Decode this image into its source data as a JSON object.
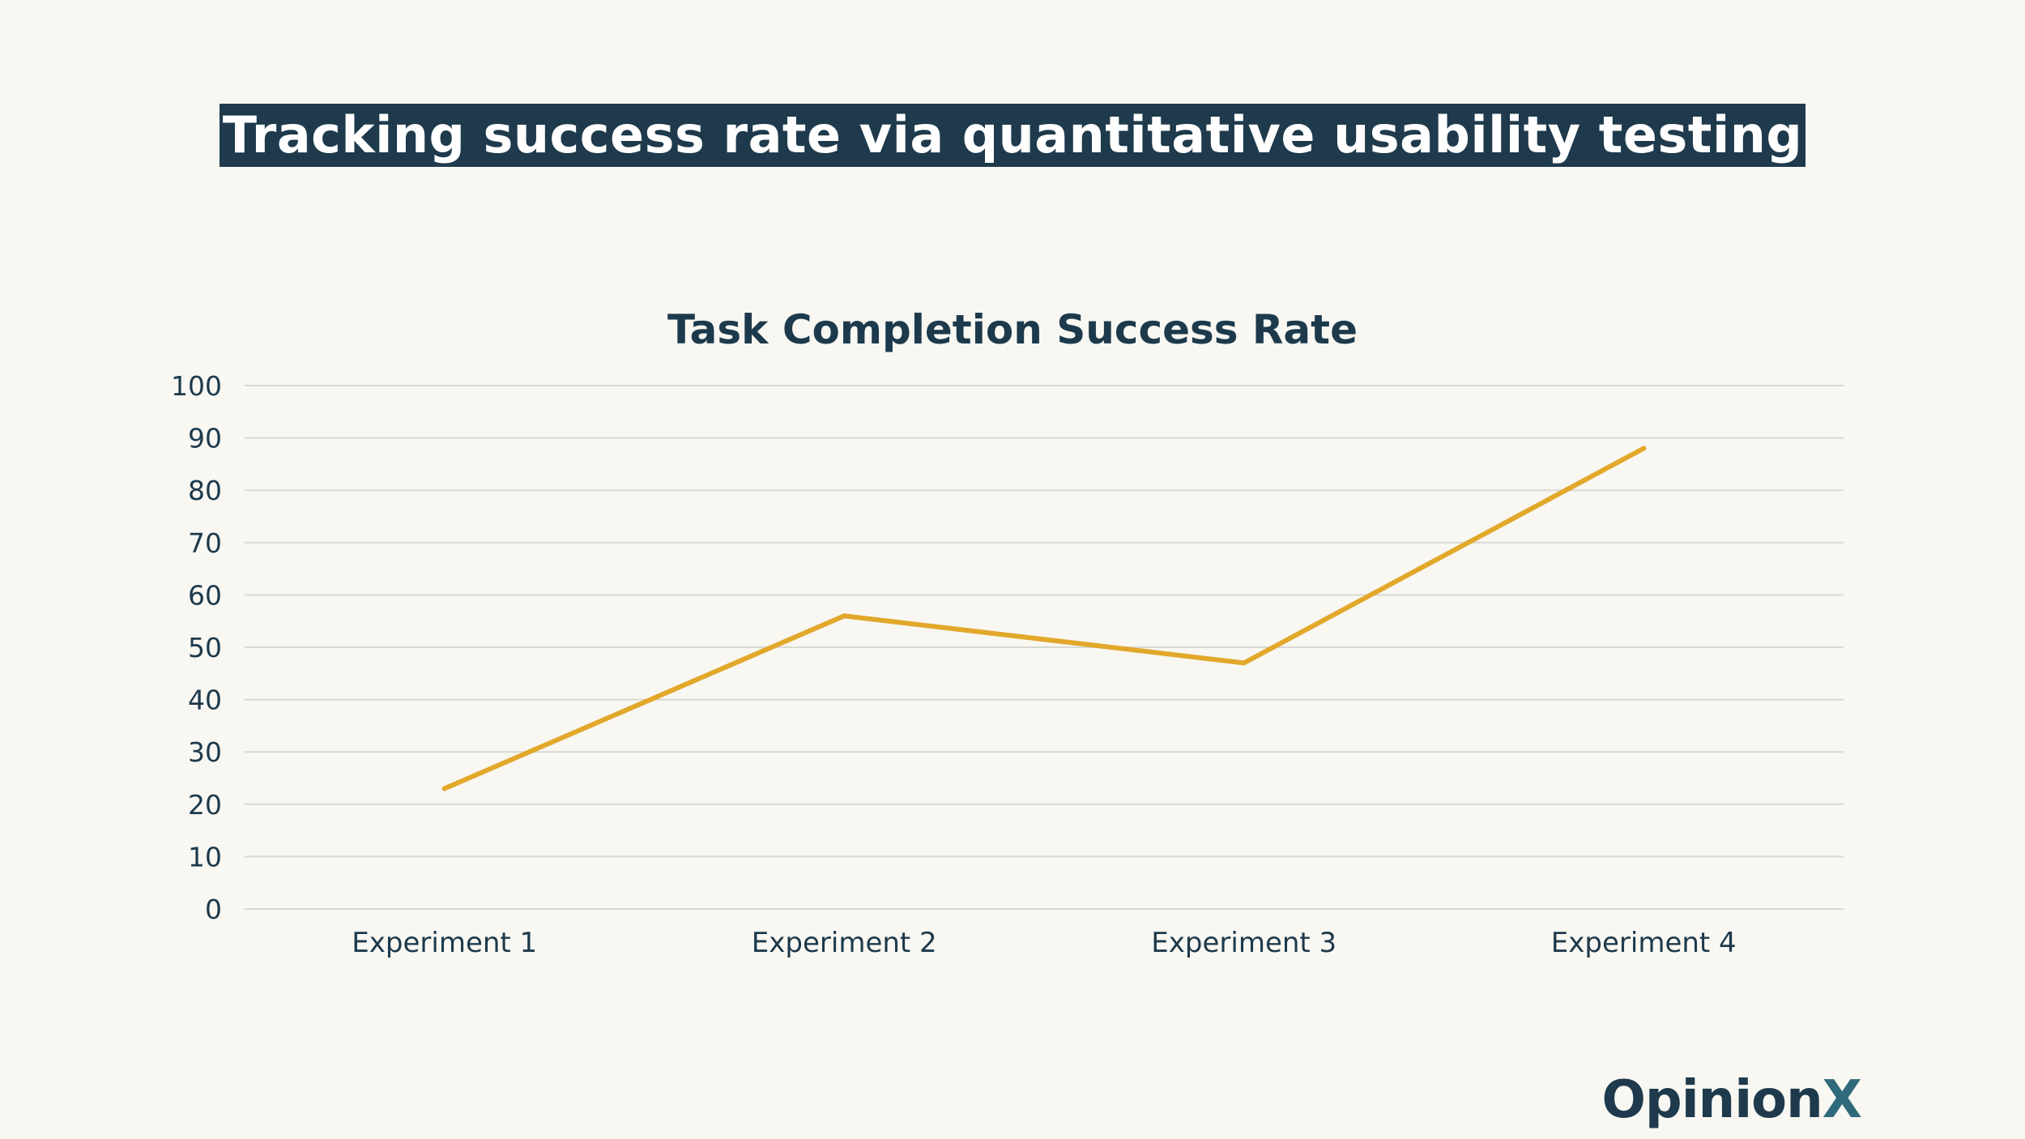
{
  "headline": "Tracking success rate via quantitative usability testing",
  "brand": {
    "name": "Opinion",
    "suffix": "X"
  },
  "colors": {
    "background": "#f8f7f2",
    "headline_bg": "#1e3a4c",
    "text": "#1d3a4c",
    "line": "#e2a82a",
    "grid": "#d9d9d4"
  },
  "chart_data": {
    "type": "line",
    "title": "Task Completion Success Rate",
    "categories": [
      "Experiment 1",
      "Experiment 2",
      "Experiment 3",
      "Experiment 4"
    ],
    "series": [
      {
        "values": [
          23,
          56,
          47,
          88
        ]
      }
    ],
    "ylim": [
      0,
      100
    ],
    "yticks": [
      "0",
      "10",
      "20",
      "30",
      "40",
      "50",
      "60",
      "70",
      "80",
      "90",
      "100"
    ],
    "xlabel": "",
    "ylabel": "",
    "grid": true,
    "legend": "none"
  }
}
